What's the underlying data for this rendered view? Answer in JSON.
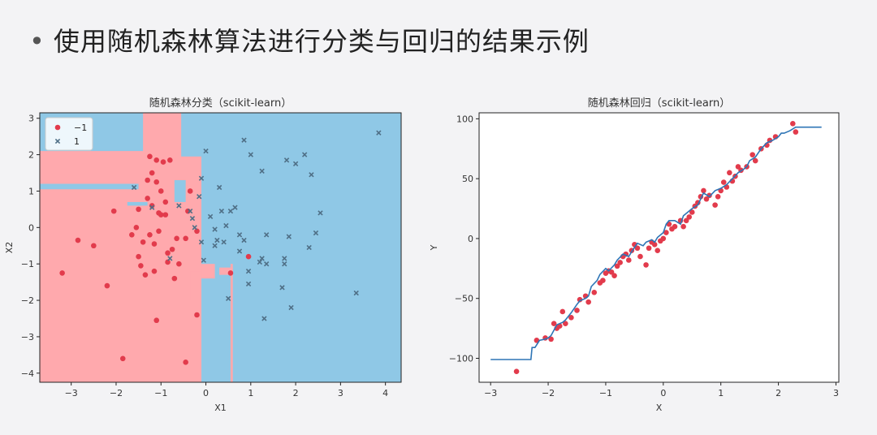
{
  "slide_title": "使用随机森林算法进行分类与回归的结果示例",
  "colors": {
    "class_neg_point": "#e23b4c",
    "class_pos_point": "#4f6f86",
    "region_neg": "#ffa9ad",
    "region_pos": "#8fc8e6",
    "regression_line": "#2e75b6",
    "regression_point": "#e23b4c"
  },
  "chart_data": [
    {
      "type": "scatter",
      "title": "随机森林分类（scikit-learn）",
      "xlabel": "X1",
      "ylabel": "X2",
      "xlim": [
        -3.7,
        4.35
      ],
      "ylim": [
        -4.25,
        3.15
      ],
      "xticks": [
        -3,
        -2,
        -1,
        0,
        1,
        2,
        3,
        4
      ],
      "yticks": [
        3,
        2,
        1,
        0,
        -1,
        -2,
        -3,
        -4
      ],
      "legend": {
        "position": "top-left",
        "entries": [
          "-1",
          "1"
        ]
      },
      "regions": [
        {
          "class": "-1",
          "x": [
            -3.7,
            -0.1
          ],
          "y": [
            -4.25,
            3.15
          ]
        },
        {
          "class": "1",
          "x": [
            -0.1,
            4.35
          ],
          "y": [
            -4.25,
            3.15
          ]
        },
        {
          "class": "1",
          "x": [
            -3.7,
            -1.4
          ],
          "y": [
            2.1,
            3.15
          ]
        },
        {
          "class": "1",
          "x": [
            -0.55,
            -0.1
          ],
          "y": [
            1.95,
            3.15
          ]
        },
        {
          "class": "-1",
          "x": [
            -0.35,
            -0.1
          ],
          "y": [
            -2.0,
            -1.2
          ]
        },
        {
          "class": "-1",
          "x": [
            0.55,
            0.6
          ],
          "y": [
            -4.25,
            -1.0
          ]
        },
        {
          "class": "1",
          "x": [
            -3.7,
            -1.5
          ],
          "y": [
            1.05,
            1.2
          ]
        },
        {
          "class": "1",
          "x": [
            -1.75,
            -1.3
          ],
          "y": [
            0.6,
            0.7
          ]
        },
        {
          "class": "1",
          "x": [
            -0.7,
            -0.45
          ],
          "y": [
            0.7,
            1.3
          ]
        },
        {
          "class": "-1",
          "x": [
            -0.1,
            0.2
          ],
          "y": [
            -1.4,
            -1.0
          ]
        },
        {
          "class": "-1",
          "x": [
            0.3,
            0.6
          ],
          "y": [
            -1.3,
            -1.1
          ]
        }
      ],
      "series": [
        {
          "name": "-1",
          "marker": "o",
          "points": [
            [
              -3.2,
              -1.25
            ],
            [
              -2.85,
              -0.35
            ],
            [
              -2.5,
              -0.5
            ],
            [
              -2.2,
              -1.6
            ],
            [
              -2.05,
              0.45
            ],
            [
              -1.85,
              -3.6
            ],
            [
              -1.65,
              -0.2
            ],
            [
              -1.55,
              0.0
            ],
            [
              -1.5,
              0.5
            ],
            [
              -1.5,
              -0.8
            ],
            [
              -1.45,
              -1.05
            ],
            [
              -1.4,
              -0.4
            ],
            [
              -1.35,
              -1.3
            ],
            [
              -1.3,
              1.3
            ],
            [
              -1.3,
              0.8
            ],
            [
              -1.25,
              -0.2
            ],
            [
              -1.25,
              1.95
            ],
            [
              -1.2,
              0.6
            ],
            [
              -1.2,
              1.5
            ],
            [
              -1.15,
              -0.45
            ],
            [
              -1.15,
              -1.2
            ],
            [
              -1.1,
              1.25
            ],
            [
              -1.1,
              1.85
            ],
            [
              -1.05,
              -0.1
            ],
            [
              -1.05,
              0.4
            ],
            [
              -1.0,
              1.0
            ],
            [
              -1.0,
              0.35
            ],
            [
              -0.95,
              1.8
            ],
            [
              -0.9,
              0.35
            ],
            [
              -0.9,
              0.7
            ],
            [
              -0.85,
              -0.95
            ],
            [
              -0.85,
              -0.7
            ],
            [
              -0.8,
              1.85
            ],
            [
              -0.75,
              -0.6
            ],
            [
              -0.7,
              -1.4
            ],
            [
              -0.65,
              -0.3
            ],
            [
              -0.6,
              -1.0
            ],
            [
              -1.1,
              -2.55
            ],
            [
              -0.45,
              -3.7
            ],
            [
              -0.45,
              -0.3
            ],
            [
              -0.4,
              0.45
            ],
            [
              -0.35,
              1.0
            ],
            [
              -0.2,
              -2.4
            ],
            [
              -0.2,
              -0.1
            ],
            [
              0.55,
              -1.25
            ],
            [
              0.95,
              -0.8
            ]
          ]
        },
        {
          "name": "1",
          "marker": "x",
          "points": [
            [
              -1.6,
              1.1
            ],
            [
              -1.2,
              0.55
            ],
            [
              -0.8,
              -0.85
            ],
            [
              -0.6,
              0.6
            ],
            [
              -0.35,
              0.45
            ],
            [
              -0.3,
              0.25
            ],
            [
              -0.25,
              0.0
            ],
            [
              -0.15,
              0.85
            ],
            [
              -0.1,
              1.35
            ],
            [
              -0.1,
              -0.4
            ],
            [
              -0.05,
              -0.9
            ],
            [
              0.0,
              2.1
            ],
            [
              0.1,
              0.3
            ],
            [
              0.2,
              -0.05
            ],
            [
              0.2,
              -0.5
            ],
            [
              0.25,
              -0.35
            ],
            [
              0.3,
              1.1
            ],
            [
              0.35,
              0.45
            ],
            [
              0.4,
              -0.4
            ],
            [
              0.45,
              0.05
            ],
            [
              0.5,
              -1.95
            ],
            [
              0.55,
              0.45
            ],
            [
              0.65,
              0.55
            ],
            [
              0.75,
              -0.2
            ],
            [
              0.75,
              -0.65
            ],
            [
              0.85,
              2.4
            ],
            [
              0.85,
              -0.35
            ],
            [
              0.95,
              -1.2
            ],
            [
              0.95,
              -1.55
            ],
            [
              1.0,
              2.0
            ],
            [
              1.2,
              -0.95
            ],
            [
              1.25,
              -0.85
            ],
            [
              1.25,
              1.55
            ],
            [
              1.3,
              -2.5
            ],
            [
              1.35,
              -1.0
            ],
            [
              1.35,
              -0.2
            ],
            [
              1.7,
              -1.65
            ],
            [
              1.75,
              -1.0
            ],
            [
              1.75,
              -0.85
            ],
            [
              1.8,
              1.85
            ],
            [
              1.85,
              -0.25
            ],
            [
              1.9,
              -2.2
            ],
            [
              2.0,
              1.75
            ],
            [
              2.2,
              2.0
            ],
            [
              2.3,
              -0.55
            ],
            [
              2.35,
              1.45
            ],
            [
              2.45,
              -0.15
            ],
            [
              2.55,
              0.4
            ],
            [
              3.35,
              -1.8
            ],
            [
              3.85,
              2.6
            ]
          ]
        }
      ]
    },
    {
      "type": "line",
      "title": "随机森林回归（scikit-learn）",
      "xlabel": "X",
      "ylabel": "Y",
      "xlim": [
        -3.2,
        3.05
      ],
      "ylim": [
        -120,
        105
      ],
      "xticks": [
        -3,
        -2,
        -1,
        0,
        1,
        2,
        3
      ],
      "yticks": [
        100,
        50,
        0,
        -50,
        -100
      ],
      "series": [
        {
          "name": "",
          "kind": "step-line",
          "x": [
            -3.0,
            -2.3,
            -2.28,
            -2.23,
            -2.15,
            -2.05,
            -2.0,
            -1.95,
            -1.85,
            -1.75,
            -1.7,
            -1.6,
            -1.5,
            -1.45,
            -1.35,
            -1.3,
            -1.25,
            -1.15,
            -1.1,
            -1.0,
            -0.95,
            -0.85,
            -0.8,
            -0.7,
            -0.6,
            -0.55,
            -0.45,
            -0.35,
            -0.3,
            -0.2,
            -0.15,
            -0.1,
            0.0,
            0.05,
            0.1,
            0.2,
            0.3,
            0.35,
            0.5,
            0.6,
            0.65,
            0.7,
            0.8,
            0.9,
            1.0,
            1.1,
            1.2,
            1.3,
            1.4,
            1.45,
            1.5,
            1.6,
            1.7,
            1.8,
            1.9,
            2.0,
            2.05,
            2.1,
            2.2,
            2.3,
            2.75
          ],
          "y": [
            -101,
            -101,
            -91,
            -91,
            -85,
            -84,
            -83,
            -81,
            -72,
            -70,
            -68,
            -62,
            -55,
            -52,
            -50,
            -48,
            -40,
            -35,
            -30,
            -25,
            -27,
            -22,
            -18,
            -13,
            -15,
            -11,
            -4,
            -6,
            -3,
            -1,
            -3,
            1,
            5,
            12,
            15,
            15,
            12,
            19,
            25,
            28,
            33,
            38,
            35,
            40,
            42,
            45,
            50,
            55,
            58,
            60,
            65,
            68,
            75,
            80,
            82,
            85,
            88,
            88,
            90,
            93,
            93
          ]
        },
        {
          "name": "",
          "kind": "points",
          "points": [
            [
              -2.55,
              -111
            ],
            [
              -2.2,
              -85
            ],
            [
              -2.05,
              -83
            ],
            [
              -1.95,
              -84
            ],
            [
              -1.9,
              -71
            ],
            [
              -1.85,
              -75
            ],
            [
              -1.8,
              -73
            ],
            [
              -1.75,
              -61
            ],
            [
              -1.7,
              -71
            ],
            [
              -1.6,
              -66
            ],
            [
              -1.5,
              -60
            ],
            [
              -1.45,
              -51
            ],
            [
              -1.35,
              -48
            ],
            [
              -1.3,
              -53
            ],
            [
              -1.2,
              -45
            ],
            [
              -1.1,
              -37
            ],
            [
              -1.05,
              -35
            ],
            [
              -1.0,
              -29
            ],
            [
              -0.95,
              -27
            ],
            [
              -0.9,
              -28
            ],
            [
              -0.85,
              -31
            ],
            [
              -0.8,
              -23
            ],
            [
              -0.75,
              -20
            ],
            [
              -0.7,
              -15
            ],
            [
              -0.65,
              -13
            ],
            [
              -0.6,
              -18
            ],
            [
              -0.55,
              -10
            ],
            [
              -0.5,
              -5
            ],
            [
              -0.45,
              -8
            ],
            [
              -0.4,
              -15
            ],
            [
              -0.3,
              -22
            ],
            [
              -0.25,
              -8
            ],
            [
              -0.2,
              -3
            ],
            [
              -0.15,
              -5
            ],
            [
              -0.1,
              -10
            ],
            [
              -0.05,
              -2
            ],
            [
              0.0,
              0
            ],
            [
              0.05,
              5
            ],
            [
              0.1,
              12
            ],
            [
              0.15,
              8
            ],
            [
              0.2,
              10
            ],
            [
              0.3,
              15
            ],
            [
              0.35,
              10
            ],
            [
              0.4,
              15
            ],
            [
              0.45,
              18
            ],
            [
              0.5,
              22
            ],
            [
              0.55,
              27
            ],
            [
              0.6,
              30
            ],
            [
              0.65,
              35
            ],
            [
              0.7,
              40
            ],
            [
              0.75,
              33
            ],
            [
              0.8,
              36
            ],
            [
              0.9,
              28
            ],
            [
              0.95,
              35
            ],
            [
              1.0,
              40
            ],
            [
              1.05,
              47
            ],
            [
              1.1,
              43
            ],
            [
              1.15,
              55
            ],
            [
              1.2,
              48
            ],
            [
              1.25,
              52
            ],
            [
              1.3,
              60
            ],
            [
              1.35,
              57
            ],
            [
              1.45,
              60
            ],
            [
              1.55,
              70
            ],
            [
              1.6,
              65
            ],
            [
              1.7,
              75
            ],
            [
              1.8,
              78
            ],
            [
              1.85,
              82
            ],
            [
              1.95,
              85
            ],
            [
              2.25,
              96
            ],
            [
              2.3,
              89
            ]
          ]
        }
      ]
    }
  ]
}
